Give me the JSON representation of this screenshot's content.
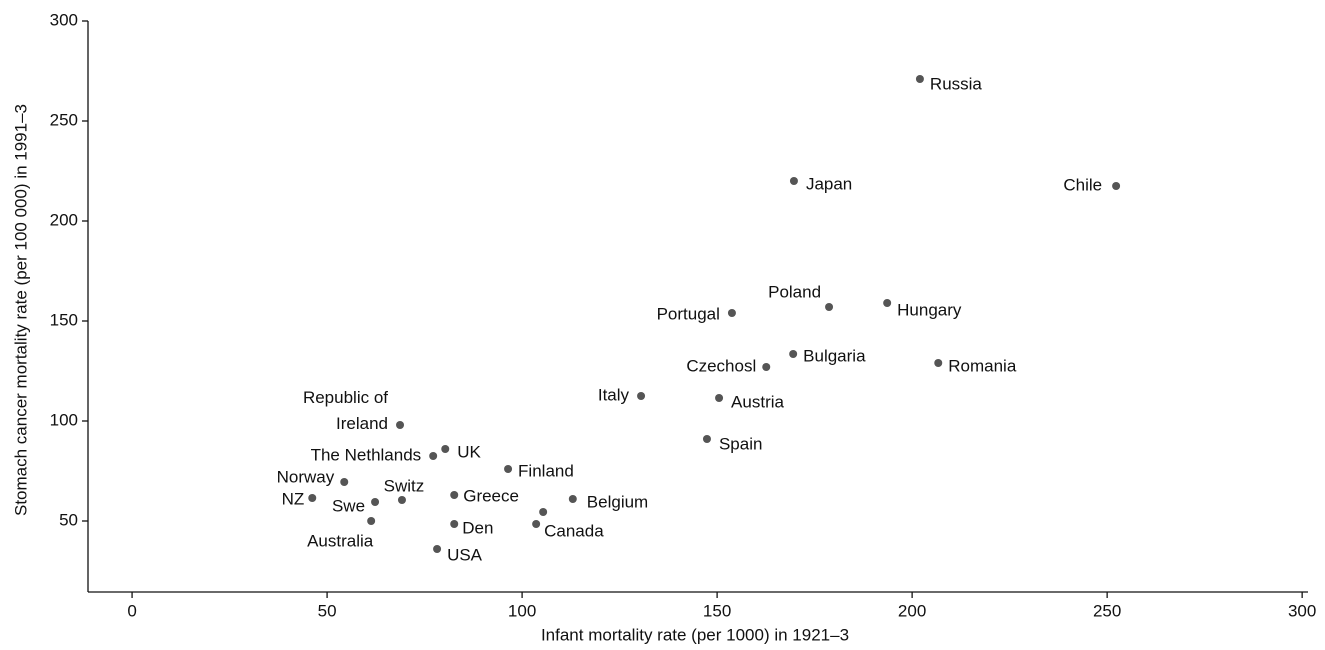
{
  "chart_data": {
    "type": "scatter",
    "x_label": "Infant mortality rate (per 1000) in 1921–3",
    "y_label": "Stomach cancer mortality rate (per 100 000) in 1991–3",
    "labels": [
      "Russia",
      "Japan",
      "Chile",
      "Poland",
      "Hungary",
      "Portugal",
      "Bulgaria",
      "Czechosl",
      "Romania",
      "Italy",
      "Austria",
      "Spain",
      "Republic of Ireland",
      "UK",
      "The Nethlands",
      "Finland",
      "Norway",
      "NZ",
      "Swe",
      "Switz",
      "Greece",
      "Belgium",
      "Canada",
      null,
      "Den",
      "Australia",
      "USA"
    ],
    "x": [
      202,
      169.7,
      252.3,
      178.7,
      193.6,
      153.8,
      169.5,
      162.6,
      206.7,
      130.5,
      150.5,
      147.4,
      68.7,
      80.3,
      77.2,
      96.4,
      54.4,
      46.2,
      62.3,
      69.2,
      82.6,
      113,
      103.6,
      105.4,
      82.6,
      61.3,
      78.2
    ],
    "y": [
      271,
      220,
      217.5,
      157,
      159,
      154,
      133.5,
      127,
      129,
      112.5,
      111.5,
      91,
      98,
      86,
      82.5,
      76,
      69.5,
      61.5,
      59.5,
      60.5,
      63,
      61,
      48.5,
      54.5,
      48.5,
      50,
      36
    ],
    "color": "#555555",
    "xlim": [
      -11.3,
      301.5
    ],
    "ylim": [
      14.5,
      300
    ],
    "xticks": [
      0,
      50,
      100,
      150,
      200,
      250,
      300
    ],
    "yticks": [
      50,
      100,
      150,
      200,
      250,
      300
    ]
  }
}
